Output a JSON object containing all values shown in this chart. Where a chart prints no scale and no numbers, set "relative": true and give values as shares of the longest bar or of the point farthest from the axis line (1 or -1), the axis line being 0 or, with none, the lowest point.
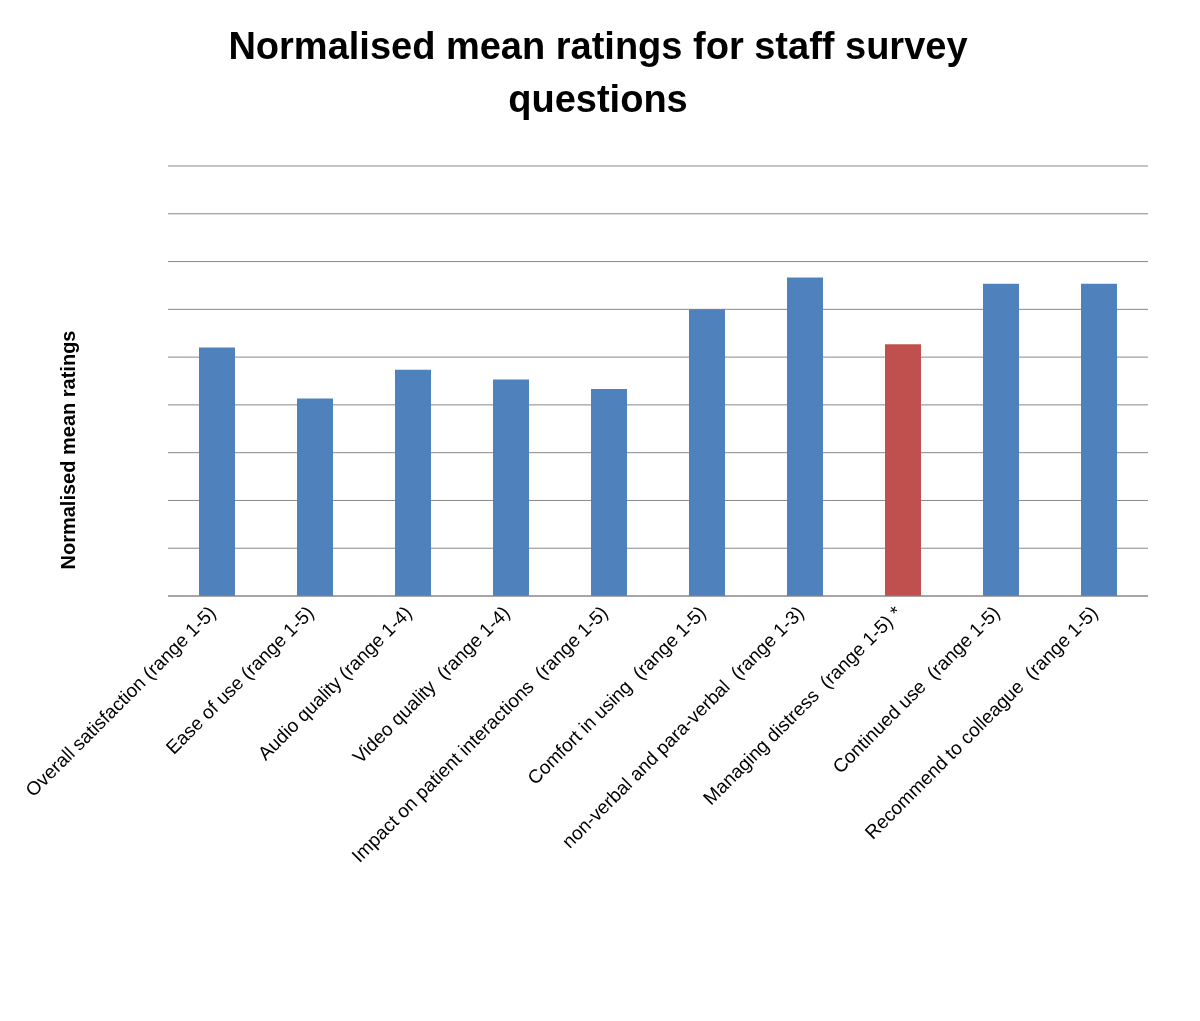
{
  "chart_data": {
    "type": "bar",
    "title": "Normalised mean ratings for staff survey questions",
    "ylabel": "Normalised mean ratings",
    "categories": [
      "Overall satisfaction (range 1-5)",
      "Ease of use (range 1-5)",
      "Audio quality (range 1-4)",
      "Video quality  (range 1-4)",
      "Impact on patient interactions  (range 1-5)",
      "Comfort in using  (range 1-5)",
      "non-verbal and para-verbal  (range 1-3)",
      "Managing distress  (range 1-5) *",
      "Continued use  (range 1-5)",
      "Recommend to colleague  (range 1-5)"
    ],
    "values": [
      0.78,
      0.62,
      0.71,
      0.68,
      0.65,
      0.9,
      1,
      0.79,
      0.98,
      0.98
    ],
    "colors": [
      "#4f81bd",
      "#4f81bd",
      "#4f81bd",
      "#4f81bd",
      "#4f81bd",
      "#4f81bd",
      "#4f81bd",
      "#c0504d",
      "#4f81bd",
      "#4f81bd"
    ],
    "relative": true,
    "grid": "y",
    "legend": false
  }
}
